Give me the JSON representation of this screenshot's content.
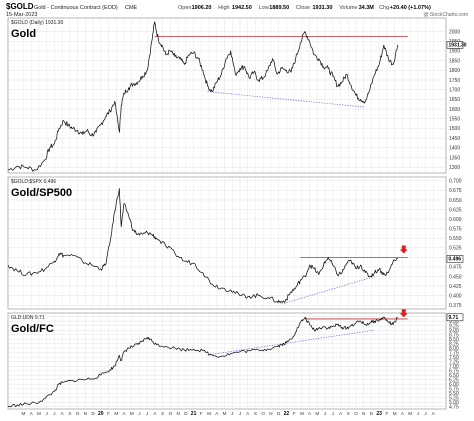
{
  "header": {
    "symbol": "$GOLD",
    "description": "Gold - Continuous Contract (EOD)",
    "exchange": "CME",
    "date": "15-Mar-2023",
    "ohlc": [
      {
        "label": "Open",
        "value": "1906.20"
      },
      {
        "label": "High",
        "value": "1942.50"
      },
      {
        "label": "Low",
        "value": "1889.50"
      },
      {
        "label": "Close",
        "value": "1931.30"
      },
      {
        "label": "Volume",
        "value": "34.3M"
      },
      {
        "label": "Chg",
        "value": "+20.40 (+1.07%)"
      }
    ],
    "credit": "@ StockCharts.com"
  },
  "chart_data": [
    {
      "type": "line",
      "title": "Gold",
      "legend": "$GOLD (Daily) 1931.30",
      "yticks": [
        1300,
        1350,
        1400,
        1450,
        1500,
        1550,
        1600,
        1650,
        1700,
        1750,
        1800,
        1850,
        1900,
        1950,
        2000
      ],
      "ylim": [
        1270,
        2070
      ],
      "last_value": "1931.30",
      "x": [
        2019.0,
        2019.1,
        2019.2,
        2019.3,
        2019.4,
        2019.45,
        2019.5,
        2019.55,
        2019.6,
        2019.65,
        2019.7,
        2019.75,
        2019.8,
        2019.85,
        2019.9,
        2019.95,
        2020.0,
        2020.05,
        2020.1,
        2020.15,
        2020.2,
        2020.22,
        2020.25,
        2020.3,
        2020.35,
        2020.4,
        2020.45,
        2020.5,
        2020.55,
        2020.58,
        2020.62,
        2020.66,
        2020.7,
        2020.75,
        2020.8,
        2020.85,
        2020.9,
        2020.95,
        2021.0,
        2021.05,
        2021.1,
        2021.15,
        2021.2,
        2021.25,
        2021.3,
        2021.35,
        2021.4,
        2021.45,
        2021.5,
        2021.55,
        2021.6,
        2021.65,
        2021.7,
        2021.75,
        2021.8,
        2021.85,
        2021.9,
        2021.95,
        2022.0,
        2022.05,
        2022.1,
        2022.15,
        2022.2,
        2022.25,
        2022.3,
        2022.35,
        2022.4,
        2022.45,
        2022.5,
        2022.55,
        2022.6,
        2022.65,
        2022.7,
        2022.75,
        2022.8,
        2022.85,
        2022.9,
        2022.95,
        2023.0,
        2023.05,
        2023.1,
        2023.15,
        2023.2
      ],
      "y": [
        1285,
        1305,
        1300,
        1285,
        1340,
        1400,
        1420,
        1500,
        1540,
        1515,
        1500,
        1490,
        1470,
        1490,
        1465,
        1480,
        1520,
        1560,
        1590,
        1640,
        1480,
        1620,
        1680,
        1710,
        1730,
        1740,
        1770,
        1800,
        1950,
        2050,
        1960,
        1930,
        1880,
        1900,
        1870,
        1860,
        1830,
        1880,
        1890,
        1860,
        1800,
        1720,
        1690,
        1740,
        1780,
        1860,
        1900,
        1780,
        1810,
        1820,
        1760,
        1790,
        1750,
        1760,
        1800,
        1860,
        1780,
        1810,
        1800,
        1790,
        1860,
        1940,
        2000,
        1950,
        1880,
        1860,
        1820,
        1810,
        1770,
        1720,
        1740,
        1780,
        1720,
        1670,
        1650,
        1640,
        1700,
        1780,
        1830,
        1930,
        1860,
        1830,
        1931
      ],
      "resistance": {
        "x": [
          2020.58,
          2023.2
        ],
        "y": [
          1975,
          1975
        ]
      },
      "support": {
        "x": [
          2021.15,
          2022.85
        ],
        "y": [
          1690,
          1610
        ]
      }
    },
    {
      "type": "line",
      "title": "Gold/SP500",
      "legend": "$GOLD:$SPX 0.496",
      "yticks": [
        0.375,
        0.4,
        0.425,
        0.45,
        0.475,
        0.5,
        0.525,
        0.55,
        0.575,
        0.6,
        0.625,
        0.65,
        0.675,
        0.7
      ],
      "ylim": [
        0.365,
        0.71
      ],
      "last_value": "0.496",
      "x": [
        2019.0,
        2019.1,
        2019.2,
        2019.3,
        2019.4,
        2019.5,
        2019.55,
        2019.6,
        2019.7,
        2019.8,
        2019.9,
        2020.0,
        2020.05,
        2020.1,
        2020.15,
        2020.2,
        2020.22,
        2020.25,
        2020.3,
        2020.35,
        2020.4,
        2020.45,
        2020.5,
        2020.55,
        2020.6,
        2020.7,
        2020.8,
        2020.9,
        2021.0,
        2021.1,
        2021.2,
        2021.3,
        2021.4,
        2021.5,
        2021.6,
        2021.7,
        2021.8,
        2021.9,
        2021.95,
        2022.0,
        2022.05,
        2022.1,
        2022.15,
        2022.2,
        2022.25,
        2022.3,
        2022.35,
        2022.4,
        2022.45,
        2022.5,
        2022.55,
        2022.6,
        2022.65,
        2022.7,
        2022.75,
        2022.8,
        2022.85,
        2022.9,
        2022.95,
        2023.0,
        2023.05,
        2023.1,
        2023.15,
        2023.2
      ],
      "y": [
        0.48,
        0.465,
        0.455,
        0.46,
        0.47,
        0.49,
        0.51,
        0.505,
        0.505,
        0.49,
        0.48,
        0.47,
        0.48,
        0.54,
        0.62,
        0.68,
        0.58,
        0.64,
        0.61,
        0.57,
        0.56,
        0.56,
        0.565,
        0.56,
        0.55,
        0.53,
        0.51,
        0.49,
        0.485,
        0.46,
        0.43,
        0.42,
        0.415,
        0.4,
        0.398,
        0.4,
        0.395,
        0.385,
        0.383,
        0.39,
        0.41,
        0.42,
        0.44,
        0.45,
        0.48,
        0.47,
        0.455,
        0.48,
        0.5,
        0.48,
        0.455,
        0.46,
        0.485,
        0.49,
        0.47,
        0.48,
        0.46,
        0.45,
        0.46,
        0.47,
        0.455,
        0.46,
        0.49,
        0.496
      ],
      "resistance": {
        "x": [
          2022.15,
          2023.2
        ],
        "y": [
          0.5,
          0.5
        ]
      },
      "support": {
        "x": [
          2021.95,
          2022.95
        ],
        "y": [
          0.378,
          0.45
        ]
      },
      "arrow": {
        "x": 2023.2,
        "y": 0.518
      }
    },
    {
      "type": "line",
      "title": "Gold/FC",
      "legend": "GLD:UDN 9.71",
      "yticks": [
        4.75,
        5.0,
        5.25,
        5.5,
        5.75,
        6.0,
        6.25,
        6.5,
        6.75,
        7.0,
        7.25,
        7.5,
        7.75,
        8.0,
        8.25,
        8.5,
        8.75,
        9.0,
        9.25,
        9.5,
        9.75
      ],
      "ylim": [
        4.62,
        9.95
      ],
      "last_value": "9.71",
      "x": [
        2019.0,
        2019.1,
        2019.2,
        2019.3,
        2019.4,
        2019.5,
        2019.55,
        2019.6,
        2019.7,
        2019.8,
        2019.9,
        2020.0,
        2020.1,
        2020.15,
        2020.2,
        2020.22,
        2020.25,
        2020.3,
        2020.35,
        2020.4,
        2020.45,
        2020.5,
        2020.55,
        2020.6,
        2020.7,
        2020.8,
        2020.9,
        2021.0,
        2021.1,
        2021.2,
        2021.3,
        2021.4,
        2021.5,
        2021.6,
        2021.7,
        2021.8,
        2021.9,
        2021.95,
        2022.0,
        2022.05,
        2022.1,
        2022.15,
        2022.2,
        2022.25,
        2022.3,
        2022.35,
        2022.4,
        2022.45,
        2022.5,
        2022.55,
        2022.6,
        2022.65,
        2022.7,
        2022.75,
        2022.8,
        2022.85,
        2022.9,
        2022.95,
        2023.0,
        2023.05,
        2023.1,
        2023.15,
        2023.2
      ],
      "y": [
        4.75,
        4.85,
        4.9,
        4.95,
        5.2,
        5.6,
        6.0,
        6.1,
        6.2,
        6.25,
        6.3,
        6.5,
        6.8,
        7.0,
        7.6,
        7.3,
        7.8,
        8.0,
        8.1,
        8.2,
        8.4,
        8.6,
        8.4,
        8.2,
        8.1,
        8.0,
        7.9,
        7.95,
        7.85,
        7.6,
        7.55,
        7.7,
        7.8,
        7.85,
        7.9,
        7.95,
        8.1,
        8.2,
        8.3,
        8.5,
        8.9,
        9.4,
        9.7,
        9.3,
        9.0,
        9.1,
        9.2,
        9.1,
        9.2,
        9.3,
        9.15,
        9.1,
        9.25,
        9.4,
        9.5,
        9.3,
        9.4,
        9.5,
        9.55,
        9.7,
        9.45,
        9.3,
        9.71
      ],
      "resistance": {
        "x": [
          2022.2,
          2023.2
        ],
        "y": [
          9.62,
          9.62
        ]
      },
      "support": {
        "x": [
          2021.15,
          2022.95
        ],
        "y": [
          7.62,
          9.0
        ]
      },
      "arrow": {
        "x": 2023.2,
        "y": 9.88
      }
    }
  ],
  "x_axis": {
    "xlim": [
      2019.0,
      2023.72
    ],
    "month_labels": [
      "M",
      "A",
      "M",
      "J",
      "J",
      "A",
      "S",
      "O",
      "N",
      "D",
      "2020",
      "F",
      "M",
      "A",
      "M",
      "J",
      "J",
      "A",
      "S",
      "O",
      "N",
      "D",
      "2021",
      "F",
      "M",
      "A",
      "M",
      "J",
      "J",
      "A",
      "S",
      "O",
      "N",
      "D",
      "2022",
      "F",
      "M",
      "A",
      "M",
      "J",
      "J",
      "A",
      "S",
      "O",
      "N",
      "D",
      "2023",
      "F",
      "M",
      "A",
      "M",
      "J",
      "J",
      "A"
    ]
  },
  "colors": {
    "line": "#111111",
    "resistance": "#c2323a",
    "support": "#5b5bd6",
    "arrow": "#e02020",
    "grid": "#dcdcdc",
    "border": "#888888"
  }
}
